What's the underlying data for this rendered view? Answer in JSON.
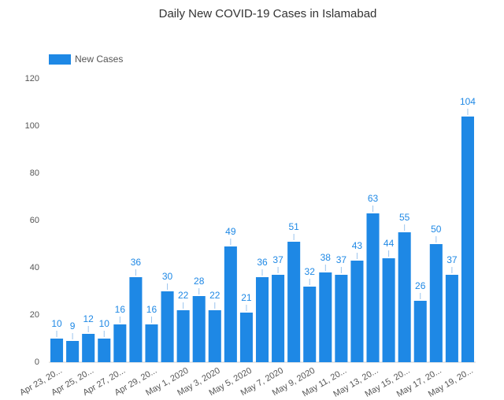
{
  "chart_data": {
    "type": "bar",
    "title": "Daily New COVID-19 Cases in Islamabad",
    "categories": [
      "Apr 23, 20...",
      null,
      "Apr 25, 20...",
      null,
      "Apr 27, 20...",
      null,
      "Apr 29, 20...",
      null,
      "May 1, 2020",
      null,
      "May 3, 2020",
      null,
      "May 5, 2020",
      null,
      "May 7, 2020",
      null,
      "May 9, 2020",
      null,
      "May 11, 20...",
      null,
      "May 13, 20...",
      null,
      "May 15, 20...",
      null,
      "May 17, 20...",
      null,
      "May 19, 20..."
    ],
    "series": [
      {
        "name": "New Cases",
        "color": "#1e88e5",
        "values": [
          10,
          9,
          12,
          10,
          16,
          36,
          16,
          30,
          22,
          28,
          22,
          49,
          21,
          36,
          37,
          51,
          32,
          38,
          37,
          43,
          63,
          44,
          55,
          26,
          50,
          37,
          104
        ]
      }
    ],
    "ylim": [
      0,
      120
    ],
    "yticks": [
      0,
      20,
      40,
      60,
      80,
      100,
      120
    ],
    "grid": false,
    "legend": "top-left"
  }
}
